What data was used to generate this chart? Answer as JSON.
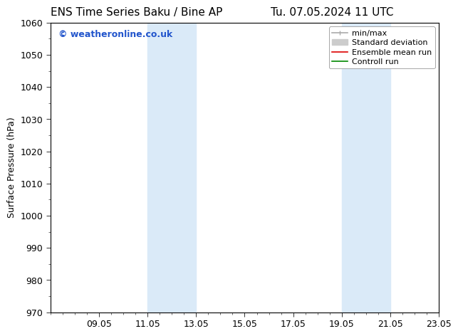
{
  "title_left": "ENS Time Series Baku / Bine AP",
  "title_right": "Tu. 07.05.2024 11 UTC",
  "ylabel": "Surface Pressure (hPa)",
  "ylim": [
    970,
    1060
  ],
  "yticks": [
    970,
    980,
    990,
    1000,
    1010,
    1020,
    1030,
    1040,
    1050,
    1060
  ],
  "xlim": [
    0,
    16
  ],
  "xtick_labels": [
    "09.05",
    "11.05",
    "13.05",
    "15.05",
    "17.05",
    "19.05",
    "21.05",
    "23.05"
  ],
  "xtick_positions": [
    2,
    4,
    6,
    8,
    10,
    12,
    14,
    16
  ],
  "watermark": "© weatheronline.co.uk",
  "watermark_color": "#2255cc",
  "bg_color": "#ffffff",
  "shaded_regions": [
    {
      "x_start": 4,
      "x_end": 6,
      "color": "#daeaf8"
    },
    {
      "x_start": 12,
      "x_end": 14,
      "color": "#daeaf8"
    }
  ],
  "legend_entries": [
    {
      "label": "min/max",
      "color": "#aaaaaa",
      "lw": 1.2
    },
    {
      "label": "Standard deviation",
      "color": "#cccccc",
      "lw": 5
    },
    {
      "label": "Ensemble mean run",
      "color": "#dd0000",
      "lw": 1.2
    },
    {
      "label": "Controll run",
      "color": "#008800",
      "lw": 1.2
    }
  ],
  "title_fontsize": 11,
  "ylabel_fontsize": 9,
  "tick_fontsize": 9,
  "watermark_fontsize": 9,
  "legend_fontsize": 8,
  "border_color": "#000000"
}
